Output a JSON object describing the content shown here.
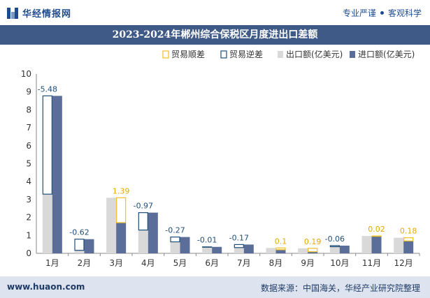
{
  "header": {
    "brand": "华经情报网",
    "slogan_left": "专业严谨",
    "slogan_right": "客观科学"
  },
  "colors": {
    "export": "#d9d9d9",
    "import": "#5b6e9a",
    "surplus": "#f0c020",
    "deficit": "#1f4e79",
    "title_bg": "#3f5a86"
  },
  "chart_data": {
    "type": "bar",
    "title": "2023-2024年郴州综合保税区月度进出口差额",
    "categories": [
      "1月",
      "2月",
      "3月",
      "4月",
      "5月",
      "6月",
      "7月",
      "8月",
      "9月",
      "10月",
      "11月",
      "12月"
    ],
    "legend": [
      "贸易顺差",
      "贸易逆差",
      "出口额(亿美元)",
      "进口额(亿美元)"
    ],
    "legend_position": "top-right",
    "ylim": [
      0,
      10
    ],
    "yticks": [
      0,
      1,
      2,
      3,
      4,
      5,
      6,
      7,
      8,
      9,
      10
    ],
    "series": [
      {
        "name": "出口额(亿美元)",
        "values": [
          3.3,
          0.17,
          3.1,
          1.3,
          0.64,
          0.35,
          0.32,
          0.3,
          0.28,
          0.37,
          0.97,
          0.87
        ]
      },
      {
        "name": "进口额(亿美元)",
        "values": [
          8.78,
          0.79,
          1.71,
          2.27,
          0.91,
          0.36,
          0.49,
          0.2,
          0.09,
          0.43,
          0.95,
          0.69
        ]
      }
    ],
    "balance": [
      -5.48,
      -0.62,
      1.39,
      -0.97,
      -0.27,
      -0.01,
      -0.17,
      0.1,
      0.19,
      -0.06,
      0.02,
      0.18
    ],
    "balance_labels": [
      "-5.48",
      "-0.62",
      "1.39",
      "-0.97",
      "-0.27",
      "-0.01",
      "-0.17",
      "0.1",
      "0.19",
      "-0.06",
      "0.02",
      "0.18"
    ]
  },
  "footer": {
    "website": "www.huaon.com",
    "source": "数据来源：中国海关，华经产业研究院整理"
  }
}
